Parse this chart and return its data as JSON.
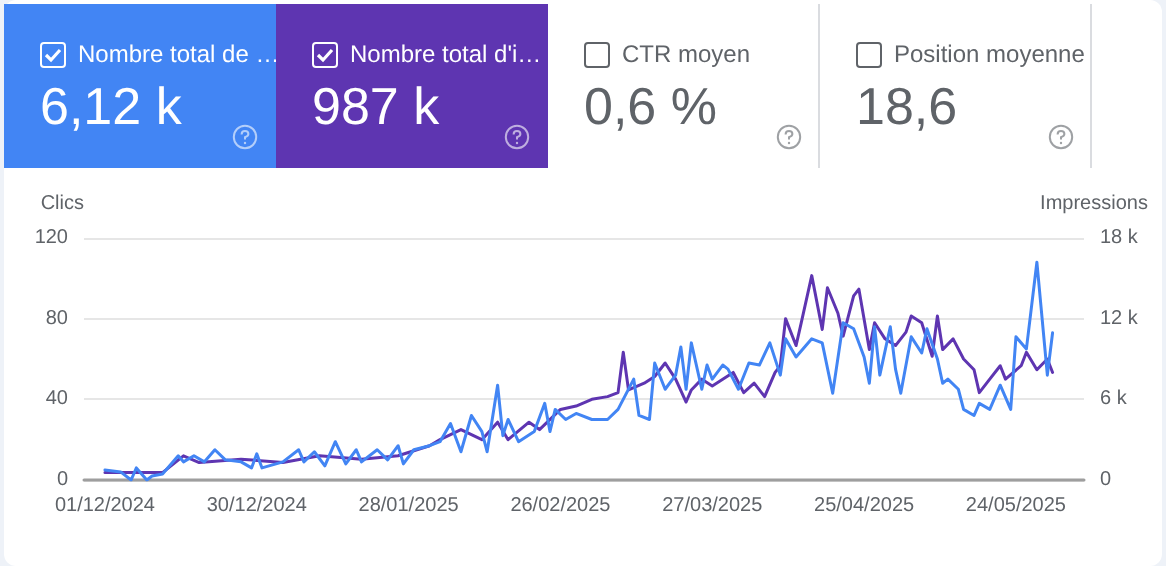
{
  "chart_data": [
    {
      "type": "other",
      "annotations": [
        "Nombre total de …",
        "6,12 k",
        "Nombre total d'i…",
        "987 k",
        "CTR moyen",
        "0,6 %",
        "Position moyenne",
        "18,6"
      ]
    },
    {
      "type": "line",
      "ylabel": "Clics",
      "y2label": "Impressions",
      "grid": "y",
      "marker": "none",
      "xlim": [
        "2024-11-27",
        "2025-06-06"
      ],
      "xticks": [
        {
          "value": "2024-12-01",
          "label": "01/12/2024"
        },
        {
          "value": "2024-12-30",
          "label": "30/12/2024"
        },
        {
          "value": "2025-01-28",
          "label": "28/01/2025"
        },
        {
          "value": "2025-02-26",
          "label": "26/02/2025"
        },
        {
          "value": "2025-03-27",
          "label": "27/03/2025"
        },
        {
          "value": "2025-04-25",
          "label": "25/04/2025"
        },
        {
          "value": "2025-05-24",
          "label": "24/05/2025"
        }
      ],
      "ylim": [
        0,
        120
      ],
      "yticks": [
        0,
        40,
        80,
        120
      ],
      "y2lim": [
        0,
        18000
      ],
      "y2ticks": [
        0,
        {
          "value": 6000,
          "label": "6 k"
        },
        {
          "value": 12000,
          "label": "12 k"
        },
        {
          "value": 18000,
          "label": "18 k"
        }
      ],
      "series": [
        {
          "color": "#5e35b1",
          "axis": "y2",
          "x": [
            "2024-12-01",
            "2024-12-07",
            "2024-12-12",
            "2024-12-16",
            "2024-12-19",
            "2024-12-27",
            "2025-01-04",
            "2025-01-11",
            "2025-01-19",
            "2025-01-26",
            "2025-02-01",
            "2025-02-03",
            "2025-02-07",
            "2025-02-11",
            "2025-02-14",
            "2025-02-16",
            "2025-02-20",
            "2025-02-22",
            "2025-02-26",
            "2025-03-01",
            "2025-03-04",
            "2025-03-07",
            "2025-03-09",
            "2025-03-10",
            "2025-03-11",
            "2025-03-14",
            "2025-03-16",
            "2025-03-18",
            "2025-03-20",
            "2025-03-22",
            "2025-03-23",
            "2025-03-25",
            "2025-03-27",
            "2025-03-29",
            "2025-03-31",
            "2025-04-02",
            "2025-04-04",
            "2025-04-06",
            "2025-04-08",
            "2025-04-09",
            "2025-04-10",
            "2025-04-12",
            "2025-04-13",
            "2025-04-15",
            "2025-04-17",
            "2025-04-18",
            "2025-04-20",
            "2025-04-21",
            "2025-04-23",
            "2025-04-24",
            "2025-04-26",
            "2025-04-27",
            "2025-04-29",
            "2025-05-01",
            "2025-05-03",
            "2025-05-04",
            "2025-05-06",
            "2025-05-08",
            "2025-05-09",
            "2025-05-10",
            "2025-05-12",
            "2025-05-14",
            "2025-05-16",
            "2025-05-17",
            "2025-05-19",
            "2025-05-21",
            "2025-05-22",
            "2025-05-25",
            "2025-05-26",
            "2025-05-28",
            "2025-05-30",
            "2025-05-31"
          ],
          "values": [
            550,
            550,
            550,
            1800,
            1300,
            1550,
            1300,
            1800,
            1550,
            1800,
            2550,
            3000,
            3750,
            3000,
            4300,
            3000,
            4300,
            3750,
            5250,
            5500,
            6000,
            6200,
            6500,
            9500,
            6700,
            7200,
            7700,
            8700,
            7500,
            5800,
            6700,
            7500,
            7000,
            7500,
            8000,
            6500,
            7200,
            6200,
            8000,
            8500,
            12000,
            10000,
            11700,
            15200,
            11200,
            14300,
            12400,
            10700,
            13700,
            14200,
            9700,
            11700,
            10500,
            10000,
            11000,
            12200,
            11700,
            9200,
            12200,
            9700,
            10500,
            9000,
            8200,
            6500,
            7500,
            8500,
            7500,
            8500,
            9500,
            8200,
            9000,
            8000
          ]
        },
        {
          "color": "#4285f4",
          "x": [
            "2024-12-01",
            "2024-12-04",
            "2024-12-06",
            "2024-12-07",
            "2024-12-09",
            "2024-12-10",
            "2024-12-12",
            "2024-12-15",
            "2024-12-16",
            "2024-12-18",
            "2024-12-20",
            "2024-12-22",
            "2024-12-24",
            "2024-12-27",
            "2024-12-29",
            "2024-12-30",
            "2024-12-31",
            "2025-01-04",
            "2025-01-07",
            "2025-01-08",
            "2025-01-10",
            "2025-01-12",
            "2025-01-14",
            "2025-01-16",
            "2025-01-18",
            "2025-01-19",
            "2025-01-22",
            "2025-01-24",
            "2025-01-26",
            "2025-01-27",
            "2025-01-29",
            "2025-02-01",
            "2025-02-03",
            "2025-02-05",
            "2025-02-07",
            "2025-02-09",
            "2025-02-11",
            "2025-02-12",
            "2025-02-14",
            "2025-02-15",
            "2025-02-16",
            "2025-02-18",
            "2025-02-21",
            "2025-02-23",
            "2025-02-24",
            "2025-02-25",
            "2025-02-27",
            "2025-03-01",
            "2025-03-04",
            "2025-03-07",
            "2025-03-09",
            "2025-03-12",
            "2025-03-13",
            "2025-03-15",
            "2025-03-16",
            "2025-03-18",
            "2025-03-20",
            "2025-03-21",
            "2025-03-22",
            "2025-03-23",
            "2025-03-25",
            "2025-03-26",
            "2025-03-27",
            "2025-03-29",
            "2025-03-30",
            "2025-04-01",
            "2025-04-03",
            "2025-04-05",
            "2025-04-07",
            "2025-04-09",
            "2025-04-10",
            "2025-04-12",
            "2025-04-15",
            "2025-04-17",
            "2025-04-19",
            "2025-04-21",
            "2025-04-23",
            "2025-04-25",
            "2025-04-26",
            "2025-04-27",
            "2025-04-28",
            "2025-04-30",
            "2025-05-01",
            "2025-05-02",
            "2025-05-04",
            "2025-05-06",
            "2025-05-07",
            "2025-05-09",
            "2025-05-10",
            "2025-05-11",
            "2025-05-13",
            "2025-05-14",
            "2025-05-16",
            "2025-05-17",
            "2025-05-19",
            "2025-05-21",
            "2025-05-23",
            "2025-05-24",
            "2025-05-26",
            "2025-05-28",
            "2025-05-30",
            "2025-05-31"
          ],
          "values": [
            5,
            4,
            0,
            6,
            0,
            2,
            3,
            12,
            9,
            12,
            9,
            15,
            10,
            9,
            6,
            13,
            6,
            9,
            15,
            9,
            14,
            7,
            19,
            8,
            15,
            9,
            15,
            10,
            17,
            8,
            15,
            17,
            19,
            28,
            14,
            32,
            24,
            14,
            47,
            22,
            30,
            19,
            24,
            38,
            24,
            35,
            30,
            33,
            30,
            30,
            35,
            50,
            32,
            30,
            58,
            45,
            52,
            66,
            45,
            68,
            45,
            57,
            50,
            57,
            55,
            45,
            58,
            57,
            68,
            52,
            70,
            61,
            70,
            68,
            43,
            78,
            75,
            61,
            48,
            76,
            52,
            76,
            55,
            43,
            71,
            63,
            75,
            60,
            48,
            50,
            45,
            35,
            32,
            38,
            35,
            47,
            35,
            71,
            65,
            108,
            52,
            73
          ]
        }
      ]
    }
  ]
}
